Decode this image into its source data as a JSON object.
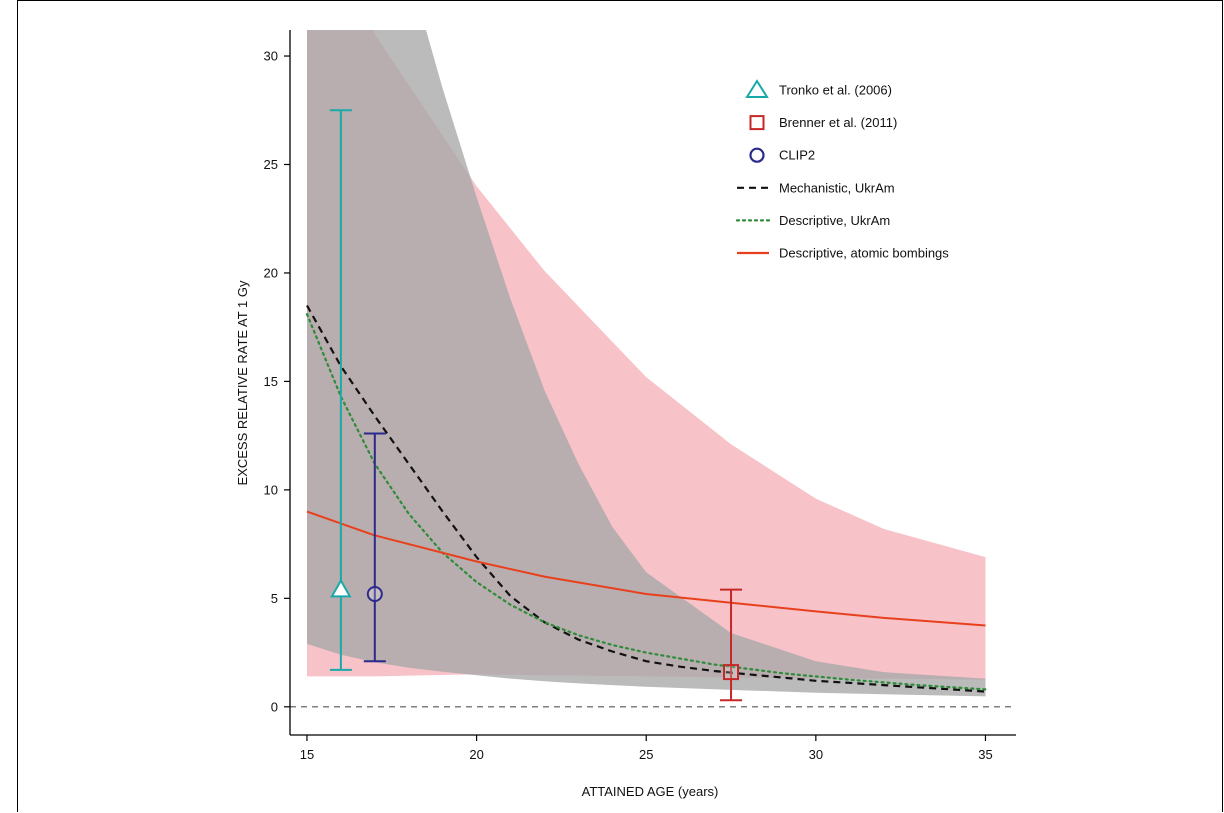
{
  "chart_data": {
    "type": "line",
    "xlabel": "ATTAINED AGE (years)",
    "ylabel": "EXCESS RELATIVE RATE AT 1 Gy",
    "xlim": [
      14.5,
      35.9
    ],
    "ylim": [
      -1.3,
      31.2
    ],
    "x_ticks": [
      15,
      20,
      25,
      30,
      35
    ],
    "y_ticks": [
      0,
      5,
      10,
      15,
      20,
      25,
      30
    ],
    "reference_line": {
      "y": 0,
      "style": "dashed",
      "color": "#555555"
    },
    "legend_position": "top-right",
    "bands": [
      {
        "color": "#f7c3c9",
        "x": [
          15,
          17,
          20,
          22,
          25,
          27.5,
          30,
          32,
          35
        ],
        "lower": [
          1.4,
          1.4,
          1.5,
          1.45,
          1.4,
          1.35,
          1.3,
          1.3,
          1.25
        ],
        "upper": [
          40,
          31,
          24,
          20.1,
          15.2,
          12.1,
          9.6,
          8.2,
          6.9
        ]
      },
      {
        "color": "#a8a8a8",
        "x": [
          15,
          16,
          17,
          18,
          19,
          20,
          21,
          22,
          23,
          24,
          25,
          27.5,
          30,
          32,
          35
        ],
        "lower": [
          2.9,
          2.4,
          2.05,
          1.8,
          1.62,
          1.45,
          1.3,
          1.18,
          1.08,
          1.0,
          0.92,
          0.78,
          0.65,
          0.58,
          0.48
        ],
        "upper": [
          40,
          40,
          40,
          34,
          28.5,
          23.5,
          18.8,
          14.6,
          11.2,
          8.3,
          6.2,
          3.4,
          2.1,
          1.6,
          1.3
        ]
      }
    ],
    "series": [
      {
        "name": "Mechanistic, UkrAm",
        "style": "dashed",
        "color": "#111111",
        "x": [
          15,
          16,
          17,
          18,
          19,
          20,
          21,
          22,
          23,
          24,
          25,
          26,
          27,
          28,
          29,
          30,
          31,
          32,
          33,
          34,
          35
        ],
        "y": [
          18.5,
          15.7,
          13.4,
          11.2,
          9.0,
          6.9,
          5.1,
          3.9,
          3.1,
          2.55,
          2.1,
          1.85,
          1.65,
          1.5,
          1.35,
          1.2,
          1.1,
          1.0,
          0.9,
          0.8,
          0.7
        ]
      },
      {
        "name": "Descriptive, UkrAm",
        "style": "dotted",
        "color": "#2e8b3a",
        "x": [
          15,
          16,
          17,
          18,
          19,
          20,
          21,
          22,
          23,
          24,
          25,
          27,
          29,
          31,
          33,
          35
        ],
        "y": [
          18.1,
          14.3,
          11.2,
          8.9,
          7.1,
          5.75,
          4.7,
          3.9,
          3.3,
          2.85,
          2.5,
          1.95,
          1.55,
          1.25,
          1.0,
          0.8
        ]
      },
      {
        "name": "Descriptive, atomic bombings",
        "style": "solid",
        "color": "#e8401c",
        "x": [
          15,
          17,
          20,
          22,
          25,
          27.5,
          30,
          32,
          35
        ],
        "y": [
          9.0,
          7.9,
          6.7,
          6.0,
          5.2,
          4.8,
          4.4,
          4.1,
          3.75
        ]
      }
    ],
    "points": [
      {
        "name": "Tronko et al. (2006)",
        "marker": "triangle",
        "color": "#1aa9a9",
        "x": 16.0,
        "y": 5.4,
        "ci": [
          1.7,
          27.5
        ]
      },
      {
        "name": "CLIP2",
        "marker": "circle",
        "color": "#2b2a8c",
        "x": 17.0,
        "y": 5.2,
        "ci": [
          2.1,
          12.6
        ]
      },
      {
        "name": "Brenner et al. (2011)",
        "marker": "square",
        "color": "#c62828",
        "x": 27.5,
        "y": 1.6,
        "ci": [
          0.3,
          5.4
        ]
      }
    ],
    "legend": [
      {
        "label": "Tronko et al. (2006)",
        "symbol": "triangle",
        "color": "#1aa9a9"
      },
      {
        "label": "Brenner et al. (2011)",
        "symbol": "square",
        "color": "#c62828"
      },
      {
        "label": "CLIP2",
        "symbol": "circle",
        "color": "#2b2a8c"
      },
      {
        "label": "Mechanistic, UkrAm",
        "symbol": "dashed",
        "color": "#111111"
      },
      {
        "label": "Descriptive, UkrAm",
        "symbol": "dotted",
        "color": "#2e8b3a"
      },
      {
        "label": "Descriptive, atomic bombings",
        "symbol": "solid",
        "color": "#e8401c"
      }
    ]
  }
}
